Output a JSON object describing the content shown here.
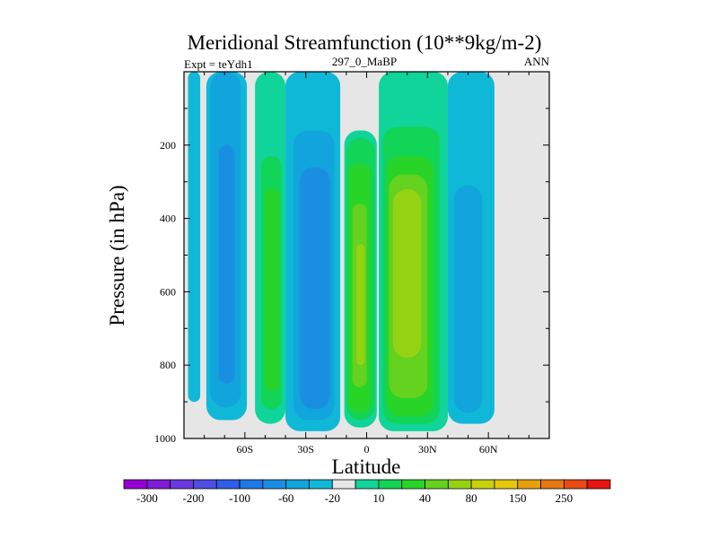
{
  "chart_data": {
    "type": "filled-contour",
    "title": "Meridional Streamfunction (10**9kg/m-2)",
    "left_string": "Expt = teYdh1",
    "center_string": "297_0_MaBP",
    "right_string": "ANN",
    "xlabel": "Latitude",
    "ylabel": "Pressure (in hPa)",
    "xlim": [
      -90,
      90
    ],
    "ylim": [
      1000,
      0
    ],
    "x_ticks": [
      {
        "value": -60,
        "label": "60S"
      },
      {
        "value": -30,
        "label": "30S"
      },
      {
        "value": 0,
        "label": "0"
      },
      {
        "value": 30,
        "label": "30N"
      },
      {
        "value": 60,
        "label": "60N"
      }
    ],
    "y_ticks": [
      {
        "value": 200,
        "label": "200"
      },
      {
        "value": 400,
        "label": "400"
      },
      {
        "value": 600,
        "label": "600"
      },
      {
        "value": 800,
        "label": "800"
      },
      {
        "value": 1000,
        "label": "1000"
      }
    ],
    "background_color": "#e6e6e6",
    "colorbar": {
      "colors": [
        "#9400d3",
        "#7f1cd8",
        "#6a38dd",
        "#4e4ee3",
        "#2f5ee8",
        "#1e78e6",
        "#1a8fe2",
        "#12a4dc",
        "#10b8d8",
        "#e6e6e6",
        "#10d49a",
        "#12d456",
        "#28d428",
        "#64d21e",
        "#96d214",
        "#c8d20a",
        "#e6c80a",
        "#e6a00a",
        "#e67814",
        "#e64c14",
        "#e61414"
      ],
      "labels": [
        "-300",
        "-200",
        "-100",
        "-60",
        "-20",
        "10",
        "40",
        "80",
        "150",
        "250"
      ],
      "label_after_box": [
        1,
        3,
        5,
        7,
        9,
        11,
        13,
        15,
        17,
        19
      ]
    },
    "cells": [
      {
        "name": "sh-polar-cell",
        "sign": "negative",
        "levels": [
          {
            "color": "#10b8d8",
            "lat": [
              -88,
              -82
            ],
            "top": 0,
            "bottom": 900
          }
        ]
      },
      {
        "name": "sh-ferrel-neg-cell",
        "sign": "negative",
        "levels": [
          {
            "color": "#10b8d8",
            "lat": [
              -79,
              -59
            ],
            "top": 0,
            "bottom": 950
          },
          {
            "color": "#12a4dc",
            "lat": [
              -77,
              -62
            ],
            "top": 0,
            "bottom": 915
          },
          {
            "color": "#1a8fe2",
            "lat": [
              -73,
              -65
            ],
            "top": 200,
            "bottom": 850
          }
        ]
      },
      {
        "name": "sh-ferrel-pos-cell",
        "sign": "positive",
        "levels": [
          {
            "color": "#10d49a",
            "lat": [
              -55,
              -40
            ],
            "top": 0,
            "bottom": 960
          },
          {
            "color": "#12d456",
            "lat": [
              -52,
              -42
            ],
            "top": 230,
            "bottom": 920
          },
          {
            "color": "#28d428",
            "lat": [
              -50,
              -43
            ],
            "top": 320,
            "bottom": 870
          }
        ]
      },
      {
        "name": "sh-hadley-cell",
        "sign": "negative",
        "levels": [
          {
            "color": "#10b8d8",
            "lat": [
              -40,
              -13
            ],
            "top": 0,
            "bottom": 980
          },
          {
            "color": "#12a4dc",
            "lat": [
              -36,
              -16
            ],
            "top": 160,
            "bottom": 950
          },
          {
            "color": "#1a8fe2",
            "lat": [
              -33,
              -18
            ],
            "top": 260,
            "bottom": 920
          }
        ]
      },
      {
        "name": "nh-hadley-west-cell",
        "sign": "positive",
        "levels": [
          {
            "color": "#10d49a",
            "lat": [
              -11,
              5
            ],
            "top": 160,
            "bottom": 970
          },
          {
            "color": "#12d456",
            "lat": [
              -10,
              4
            ],
            "top": 180,
            "bottom": 950
          },
          {
            "color": "#28d428",
            "lat": [
              -9,
              2
            ],
            "top": 250,
            "bottom": 930
          },
          {
            "color": "#64d21e",
            "lat": [
              -7,
              0
            ],
            "top": 360,
            "bottom": 860
          },
          {
            "color": "#96d214",
            "lat": [
              -5,
              -1
            ],
            "top": 470,
            "bottom": 800
          }
        ]
      },
      {
        "name": "nh-hadley-east-cell",
        "sign": "positive",
        "levels": [
          {
            "color": "#10d49a",
            "lat": [
              6,
              40
            ],
            "top": 0,
            "bottom": 980
          },
          {
            "color": "#12d456",
            "lat": [
              8,
              36
            ],
            "top": 150,
            "bottom": 960
          },
          {
            "color": "#28d428",
            "lat": [
              10,
              33
            ],
            "top": 230,
            "bottom": 940
          },
          {
            "color": "#64d21e",
            "lat": [
              11,
              30
            ],
            "top": 280,
            "bottom": 890
          },
          {
            "color": "#96d214",
            "lat": [
              13,
              27
            ],
            "top": 320,
            "bottom": 780
          }
        ]
      },
      {
        "name": "nh-ferrel-cell",
        "sign": "negative",
        "levels": [
          {
            "color": "#10b8d8",
            "lat": [
              40,
              63
            ],
            "top": 0,
            "bottom": 960
          },
          {
            "color": "#12a4dc",
            "lat": [
              43,
              57
            ],
            "top": 310,
            "bottom": 930
          }
        ]
      }
    ]
  }
}
